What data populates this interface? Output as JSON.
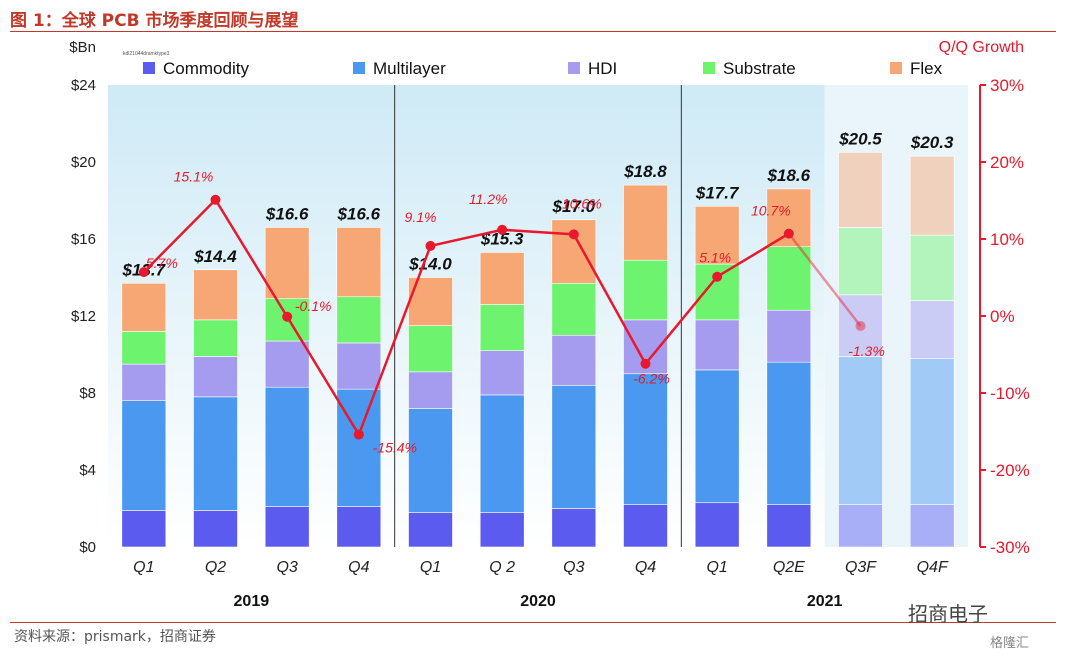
{
  "figure_title": "图 1：全球 PCB 市场季度回顾与展望",
  "source_text": "资料来源：prismark，招商证券",
  "watermark": "招商电子",
  "watermark2": "格隆汇",
  "tiny_note": "kdl21044dramktype3",
  "chart_data": {
    "type": "bar",
    "stacked": true,
    "categories": [
      "Q1",
      "Q2",
      "Q3",
      "Q4",
      "Q1",
      "Q 2",
      "Q3",
      "Q4",
      "Q1",
      "Q2E",
      "Q3F",
      "Q4F"
    ],
    "years": [
      {
        "label": "2019",
        "start": 0,
        "end": 3
      },
      {
        "label": "2020",
        "start": 4,
        "end": 7
      },
      {
        "label": "2021",
        "start": 8,
        "end": 11
      }
    ],
    "forecast_from_index": 10,
    "left_axis": {
      "unit_label": "$Bn",
      "ylim": [
        0,
        24
      ],
      "ticks": [
        0,
        4,
        8,
        12,
        16,
        20,
        24
      ],
      "tick_labels": [
        "$0",
        "$4",
        "$8",
        "$12",
        "$16",
        "$20",
        "$24"
      ]
    },
    "right_axis": {
      "label": "Q/Q Growth",
      "ylim": [
        -30,
        30
      ],
      "ticks": [
        -30,
        -20,
        -10,
        0,
        10,
        20,
        30
      ],
      "tick_labels": [
        "-30%",
        "-20%",
        "-10%",
        "0%",
        "10%",
        "20%",
        "30%"
      ]
    },
    "series": [
      {
        "name": "Commodity",
        "color": "#5b5bef",
        "values": [
          1.9,
          1.9,
          2.1,
          2.1,
          1.8,
          1.8,
          2.0,
          2.2,
          2.3,
          2.2,
          2.2,
          2.2
        ]
      },
      {
        "name": "Multilayer",
        "color": "#4a98ef",
        "values": [
          5.7,
          5.9,
          6.2,
          6.1,
          5.4,
          6.1,
          6.4,
          6.8,
          6.9,
          7.4,
          7.7,
          7.6
        ]
      },
      {
        "name": "HDI",
        "color": "#a59cf0",
        "values": [
          1.9,
          2.1,
          2.4,
          2.4,
          1.9,
          2.3,
          2.6,
          2.8,
          2.6,
          2.7,
          3.2,
          3.0
        ]
      },
      {
        "name": "Substrate",
        "color": "#6ef36e",
        "values": [
          1.7,
          1.9,
          2.2,
          2.4,
          2.4,
          2.4,
          2.7,
          3.1,
          2.9,
          3.3,
          3.5,
          3.4
        ]
      },
      {
        "name": "Flex",
        "color": "#f7a774",
        "values": [
          2.5,
          2.6,
          3.7,
          3.6,
          2.5,
          2.7,
          3.3,
          3.9,
          3.0,
          3.0,
          3.9,
          4.1
        ]
      }
    ],
    "totals": [
      "$13.7",
      "$14.4",
      "$16.6",
      "$16.6",
      "$14.0",
      "$15.3",
      "$17.0",
      "$18.8",
      "$17.7",
      "$18.6",
      "$20.5",
      "$20.3"
    ],
    "growth": {
      "name": "Q/Q Growth",
      "color": "#e8192c",
      "points": [
        {
          "x": 0.5,
          "value": 5.7,
          "label": "5.7%"
        },
        {
          "x": 1.5,
          "value": 15.1,
          "label": "15.1%"
        },
        {
          "x": 2.5,
          "value": -0.1,
          "label": "-0.1%"
        },
        {
          "x": 3.5,
          "value": -15.4,
          "label": "-15.4%"
        },
        {
          "x": 4.5,
          "value": 9.1,
          "label": "9.1%"
        },
        {
          "x": 5.5,
          "value": 11.2,
          "label": "11.2%"
        },
        {
          "x": 6.5,
          "value": 10.6,
          "label": "10.6%"
        },
        {
          "x": 7.5,
          "value": -6.2,
          "label": "-6.2%"
        },
        {
          "x": 8.5,
          "value": 5.1,
          "label": "5.1%"
        },
        {
          "x": 9.5,
          "value": 10.7,
          "label": "10.7%"
        },
        {
          "x": 10.5,
          "value": -1.3,
          "label": "-1.3%"
        }
      ],
      "note": "x is the position on the category axis in bar units, halfway between consecutive quarters"
    }
  }
}
